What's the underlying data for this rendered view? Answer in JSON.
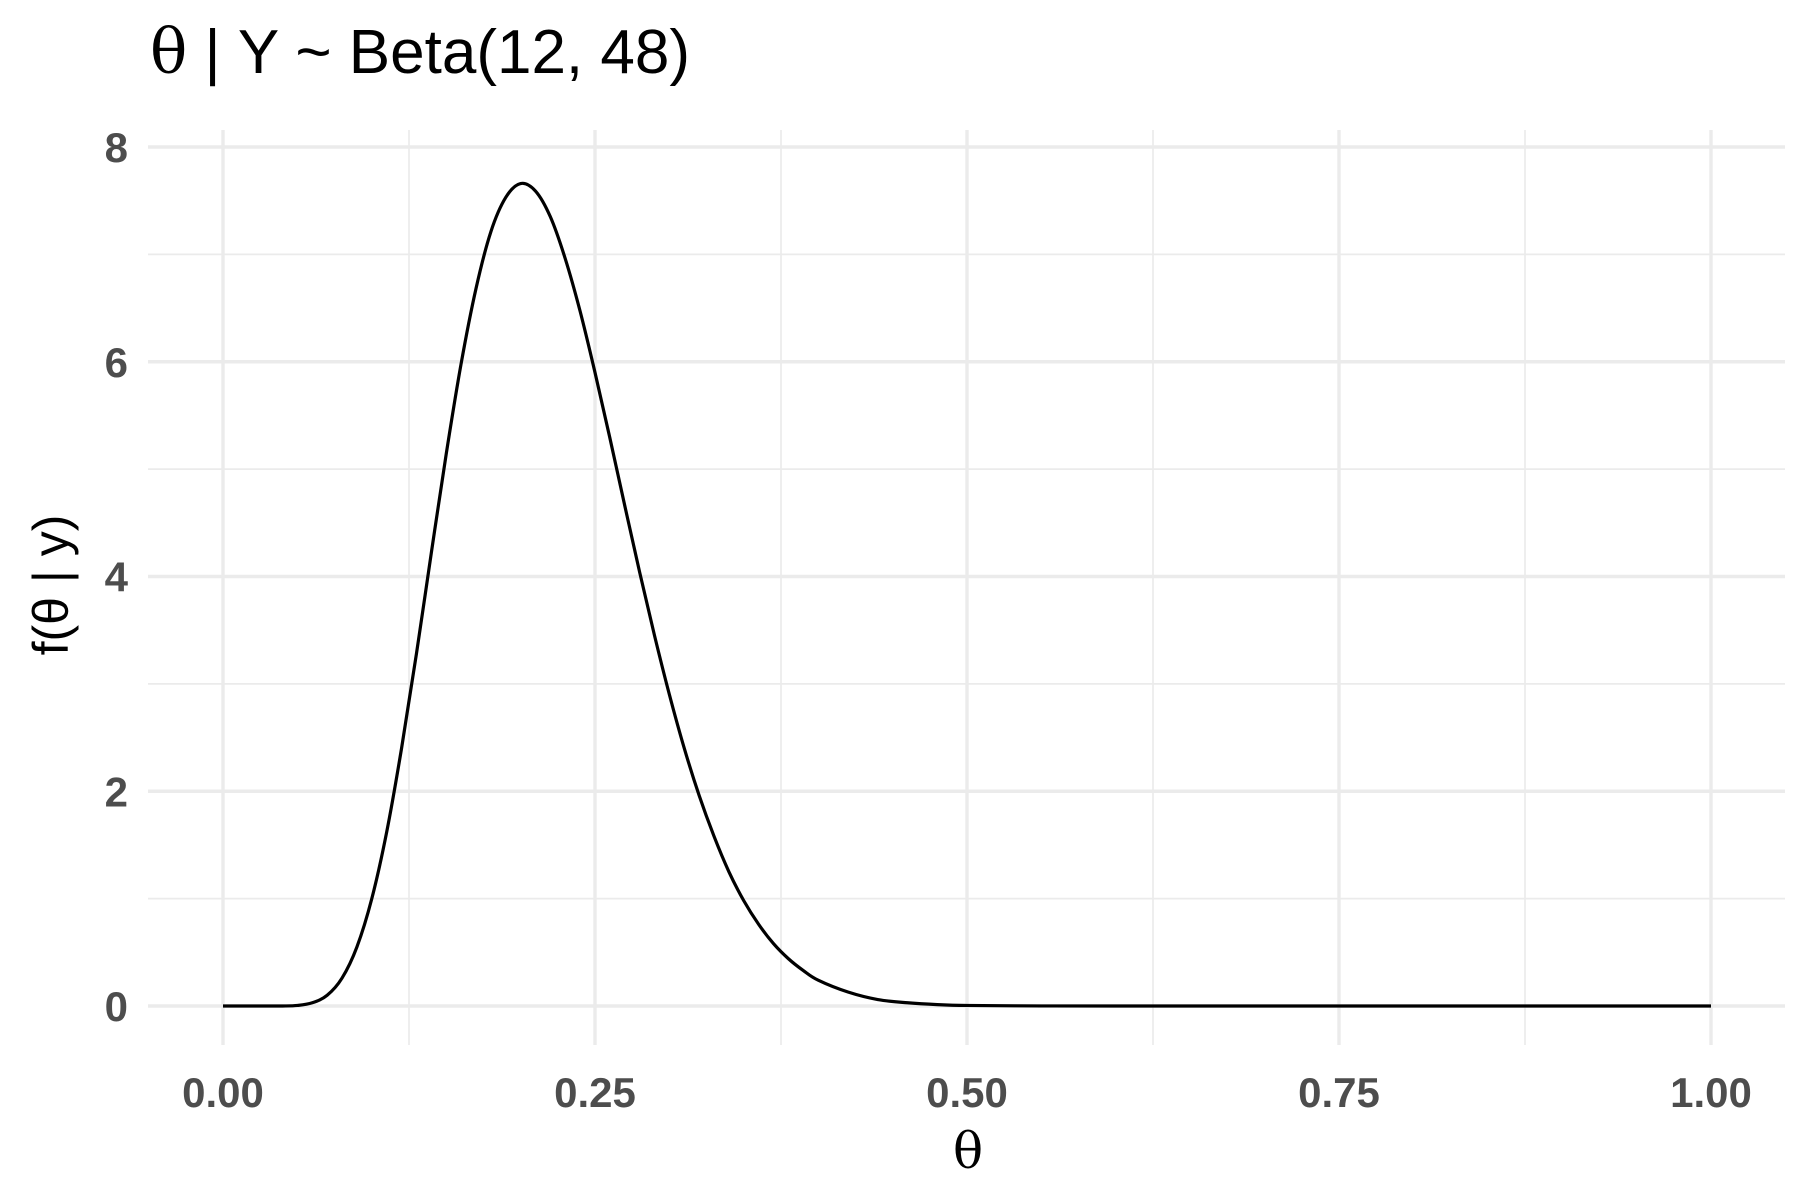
{
  "chart_data": {
    "type": "line",
    "title": "θ | Y ~ Beta(12, 48)",
    "xlabel": "θ",
    "ylabel": "f(θ | y)",
    "xlim": [
      0,
      1
    ],
    "ylim": [
      0,
      8
    ],
    "x_ticks": [
      0,
      0.25,
      0.5,
      0.75,
      1
    ],
    "x_tick_labels": [
      "0.00",
      "0.25",
      "0.50",
      "0.75",
      "1.00"
    ],
    "y_ticks": [
      0,
      2,
      4,
      6,
      8
    ],
    "y_tick_labels": [
      "0",
      "2",
      "4",
      "6",
      "8"
    ],
    "grid": true,
    "line_color": "#000000",
    "series": [
      {
        "x": [
          0.0,
          0.01,
          0.02,
          0.03,
          0.04,
          0.05,
          0.06,
          0.07,
          0.08,
          0.09,
          0.1,
          0.11,
          0.12,
          0.13,
          0.14,
          0.15,
          0.16,
          0.17,
          0.18,
          0.19,
          0.2,
          0.21,
          0.22,
          0.23,
          0.24,
          0.25,
          0.26,
          0.27,
          0.28,
          0.29,
          0.3,
          0.31,
          0.32,
          0.33,
          0.34,
          0.35,
          0.36,
          0.37,
          0.38,
          0.39,
          0.4,
          0.42,
          0.44,
          0.46,
          0.48,
          0.5,
          0.55,
          0.6,
          0.65,
          0.7,
          0.75,
          0.8,
          0.85,
          0.9,
          0.95,
          1.0
        ],
        "y": [
          0,
          0,
          0,
          0,
          0.0003,
          0.005,
          0.03,
          0.1,
          0.26,
          0.55,
          1.0,
          1.62,
          2.4,
          3.28,
          4.22,
          5.14,
          5.98,
          6.68,
          7.21,
          7.53,
          7.66,
          7.59,
          7.35,
          6.96,
          6.47,
          5.9,
          5.29,
          4.66,
          4.04,
          3.45,
          2.9,
          2.4,
          1.96,
          1.58,
          1.25,
          0.98,
          0.76,
          0.58,
          0.44,
          0.33,
          0.24,
          0.13,
          0.06,
          0.03,
          0.013,
          0.005,
          0.0006,
          4e-05,
          0,
          0,
          0,
          0,
          0,
          0,
          0,
          0
        ]
      }
    ]
  }
}
